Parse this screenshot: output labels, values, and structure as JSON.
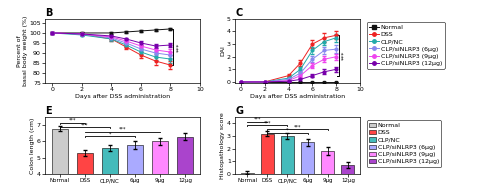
{
  "chart_data": [
    {
      "type": "line",
      "title": "B",
      "x": [
        0,
        2,
        4,
        5,
        6,
        7,
        8
      ],
      "xlabel": "Days after DSS administration",
      "ylabel": "Percent of\nbasal body weight (%)",
      "xlim": [
        -0.5,
        10
      ],
      "xticks": [
        0,
        2,
        4,
        6,
        8,
        10
      ],
      "ylim": [
        75,
        107
      ],
      "yticks": [
        75,
        80,
        85,
        90,
        95,
        100,
        105
      ],
      "series": [
        {
          "name": "Normal",
          "color": "#111111",
          "marker": "square",
          "values": [
            100,
            100,
            100,
            100.5,
            101,
            101.5,
            102
          ],
          "errors": [
            0.3,
            0.3,
            0.3,
            0.4,
            0.4,
            0.4,
            0.4
          ]
        },
        {
          "name": "DSS",
          "color": "#EE2222",
          "marker": "circle",
          "values": [
            100,
            99.5,
            97,
            93,
            89,
            86,
            84
          ],
          "errors": [
            0.3,
            0.5,
            0.8,
            1.2,
            1.5,
            1.8,
            2.0
          ]
        },
        {
          "name": "CLP/NC",
          "color": "#22AAAA",
          "marker": "circle",
          "values": [
            100,
            99,
            97,
            94,
            90.5,
            88,
            87
          ],
          "errors": [
            0.3,
            0.5,
            0.8,
            1.0,
            1.2,
            1.5,
            1.8
          ]
        },
        {
          "name": "CLP/siNLRP3 (6μg)",
          "color": "#8888EE",
          "marker": "circle",
          "values": [
            100,
            99.5,
            97.5,
            95,
            92,
            90,
            89
          ],
          "errors": [
            0.3,
            0.4,
            0.6,
            0.8,
            1.0,
            1.2,
            1.5
          ]
        },
        {
          "name": "CLP/siNLRP3 (9μg)",
          "color": "#EE44EE",
          "marker": "circle",
          "values": [
            100,
            99.5,
            98,
            96,
            93.5,
            91.5,
            90.5
          ],
          "errors": [
            0.3,
            0.4,
            0.5,
            0.7,
            0.9,
            1.1,
            1.3
          ]
        },
        {
          "name": "CLP/siNLRP3 (12μg)",
          "color": "#7700AA",
          "marker": "circle",
          "values": [
            100,
            99.5,
            98.5,
            97,
            95,
            93.5,
            94
          ],
          "errors": [
            0.3,
            0.4,
            0.5,
            0.6,
            0.8,
            1.0,
            1.2
          ]
        }
      ],
      "annotations": [
        {
          "text": "***",
          "y_range": [
            84,
            102
          ]
        }
      ]
    },
    {
      "type": "line",
      "title": "C",
      "x": [
        0,
        2,
        4,
        5,
        6,
        7,
        8
      ],
      "xlabel": "Days after DSS administration",
      "ylabel": "DAI",
      "xlim": [
        -0.5,
        10
      ],
      "xticks": [
        0,
        2,
        4,
        6,
        8,
        10
      ],
      "ylim": [
        -0.1,
        5
      ],
      "yticks": [
        0,
        1,
        2,
        3,
        4,
        5
      ],
      "legend": "upper left",
      "series": [
        {
          "name": "Normal",
          "color": "#111111",
          "marker": "square",
          "values": [
            0,
            0,
            0,
            0,
            0,
            0,
            0
          ],
          "errors": [
            0,
            0,
            0,
            0,
            0,
            0,
            0
          ]
        },
        {
          "name": "DSS",
          "color": "#EE2222",
          "marker": "circle",
          "values": [
            0,
            0,
            0.5,
            1.5,
            3.0,
            3.5,
            3.7
          ],
          "errors": [
            0,
            0,
            0.15,
            0.25,
            0.3,
            0.35,
            0.3
          ]
        },
        {
          "name": "CLP/NC",
          "color": "#22AAAA",
          "marker": "circle",
          "values": [
            0,
            0,
            0.3,
            1.0,
            2.5,
            3.2,
            3.5
          ],
          "errors": [
            0,
            0,
            0.15,
            0.2,
            0.3,
            0.3,
            0.3
          ]
        },
        {
          "name": "CLP/siNLRP3 (6μg)",
          "color": "#8888EE",
          "marker": "circle",
          "values": [
            0,
            0,
            0.2,
            0.7,
            1.8,
            2.5,
            2.6
          ],
          "errors": [
            0,
            0,
            0.1,
            0.15,
            0.25,
            0.3,
            0.3
          ]
        },
        {
          "name": "CLP/siNLRP3 (9μg)",
          "color": "#EE44EE",
          "marker": "circle",
          "values": [
            0,
            0,
            0.1,
            0.5,
            1.3,
            1.8,
            2.0
          ],
          "errors": [
            0,
            0,
            0.1,
            0.15,
            0.2,
            0.25,
            0.25
          ]
        },
        {
          "name": "CLP/siNLRP3 (12μg)",
          "color": "#7700AA",
          "marker": "circle",
          "values": [
            0,
            0,
            0.05,
            0.2,
            0.5,
            0.8,
            1.0
          ],
          "errors": [
            0,
            0,
            0.05,
            0.1,
            0.15,
            0.2,
            0.2
          ]
        }
      ],
      "annotations": [
        {
          "text": "***",
          "y_range": [
            0.5,
            3.7
          ]
        }
      ]
    },
    {
      "type": "bar",
      "title": "E",
      "categories": [
        "Normal",
        "DSS",
        "CLP/NC",
        "6μg",
        "9μg",
        "12μg"
      ],
      "values": [
        6.8,
        5.3,
        5.6,
        5.8,
        6.0,
        6.3
      ],
      "errors": [
        0.15,
        0.2,
        0.2,
        0.25,
        0.2,
        0.2
      ],
      "colors": [
        "#CCCCCC",
        "#FF4444",
        "#44BBBB",
        "#AAAAFF",
        "#FF88FF",
        "#AA44CC"
      ],
      "ylabel": "Colon length (cm)",
      "ylim": [
        4,
        7.5
      ],
      "yticks": [
        4,
        5,
        6,
        7
      ],
      "annotations": [
        {
          "text": "***",
          "between": [
            "Normal",
            "DSS"
          ],
          "y": 7.15
        },
        {
          "text": "***",
          "between": [
            "Normal",
            "CLP/NC"
          ],
          "y": 6.88
        },
        {
          "text": "***",
          "between": [
            "DSS",
            "9μg"
          ],
          "y": 6.6
        },
        {
          "text": "*",
          "between": [
            "DSS",
            "6μg"
          ],
          "y": 6.33
        }
      ]
    },
    {
      "type": "bar",
      "title": "G",
      "categories": [
        "Normal",
        "DSS",
        "CLP/NC",
        "6μg",
        "9μg",
        "12μg"
      ],
      "values": [
        0.1,
        3.2,
        3.0,
        2.5,
        1.8,
        0.7
      ],
      "errors": [
        0.1,
        0.2,
        0.25,
        0.3,
        0.3,
        0.25
      ],
      "colors": [
        "#CCCCCC",
        "#FF4444",
        "#44BBBB",
        "#AAAAFF",
        "#FF88FF",
        "#AA44CC"
      ],
      "ylabel": "Histopathology score",
      "ylim": [
        0,
        4.5
      ],
      "yticks": [
        0,
        1,
        2,
        3,
        4
      ],
      "legend": "upper left",
      "legend_labels": [
        "Normal",
        "DSS",
        "CLP/NC",
        "CLP/siNLRP3 (6μg)",
        "CLP/siNLRP3 (9μg)",
        "CLP/siNLRP3 (12μg)"
      ],
      "annotations": [
        {
          "text": "***",
          "between": [
            "Normal",
            "DSS"
          ],
          "y": 4.15
        },
        {
          "text": "***",
          "between": [
            "Normal",
            "CLP/NC"
          ],
          "y": 3.85
        },
        {
          "text": "***",
          "between": [
            "DSS",
            "9μg"
          ],
          "y": 3.55
        },
        {
          "text": "*",
          "between": [
            "DSS",
            "6μg"
          ],
          "y": 3.25
        }
      ]
    }
  ]
}
